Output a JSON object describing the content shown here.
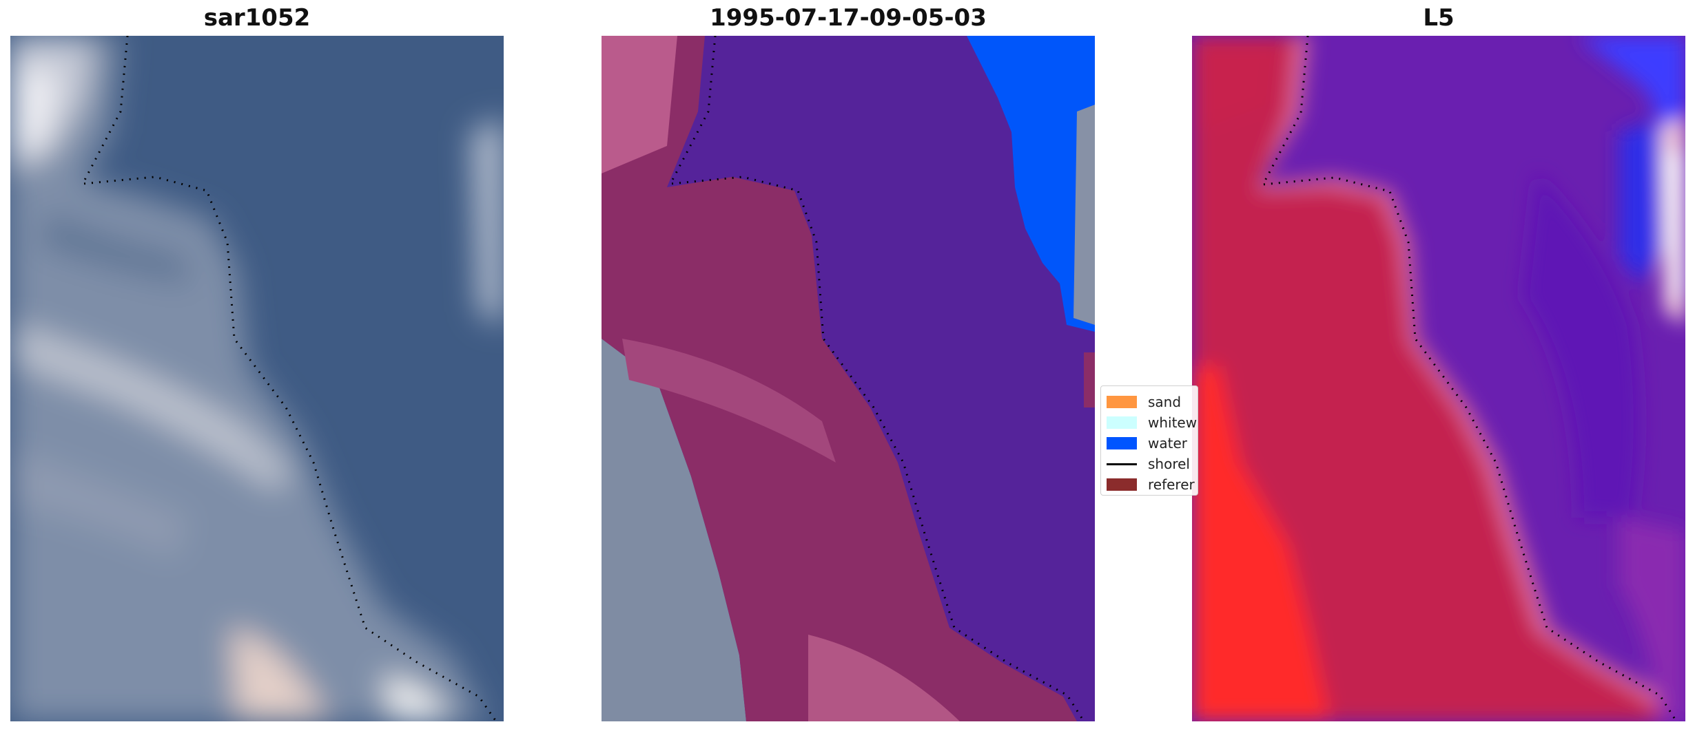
{
  "panels": [
    {
      "title": "sar1052"
    },
    {
      "title": "1995-07-17-09-05-03"
    },
    {
      "title": "L5"
    }
  ],
  "legend": {
    "items": [
      {
        "label": "sand",
        "color": "#ff9640",
        "kind": "patch"
      },
      {
        "label": "whitew",
        "color": "#ccffff",
        "kind": "patch"
      },
      {
        "label": "water",
        "color": "#0055ff",
        "kind": "patch"
      },
      {
        "label": "shorel",
        "color": "#000000",
        "kind": "line"
      },
      {
        "label": "referer",
        "color": "#8b2c2c",
        "kind": "patch"
      }
    ]
  }
}
